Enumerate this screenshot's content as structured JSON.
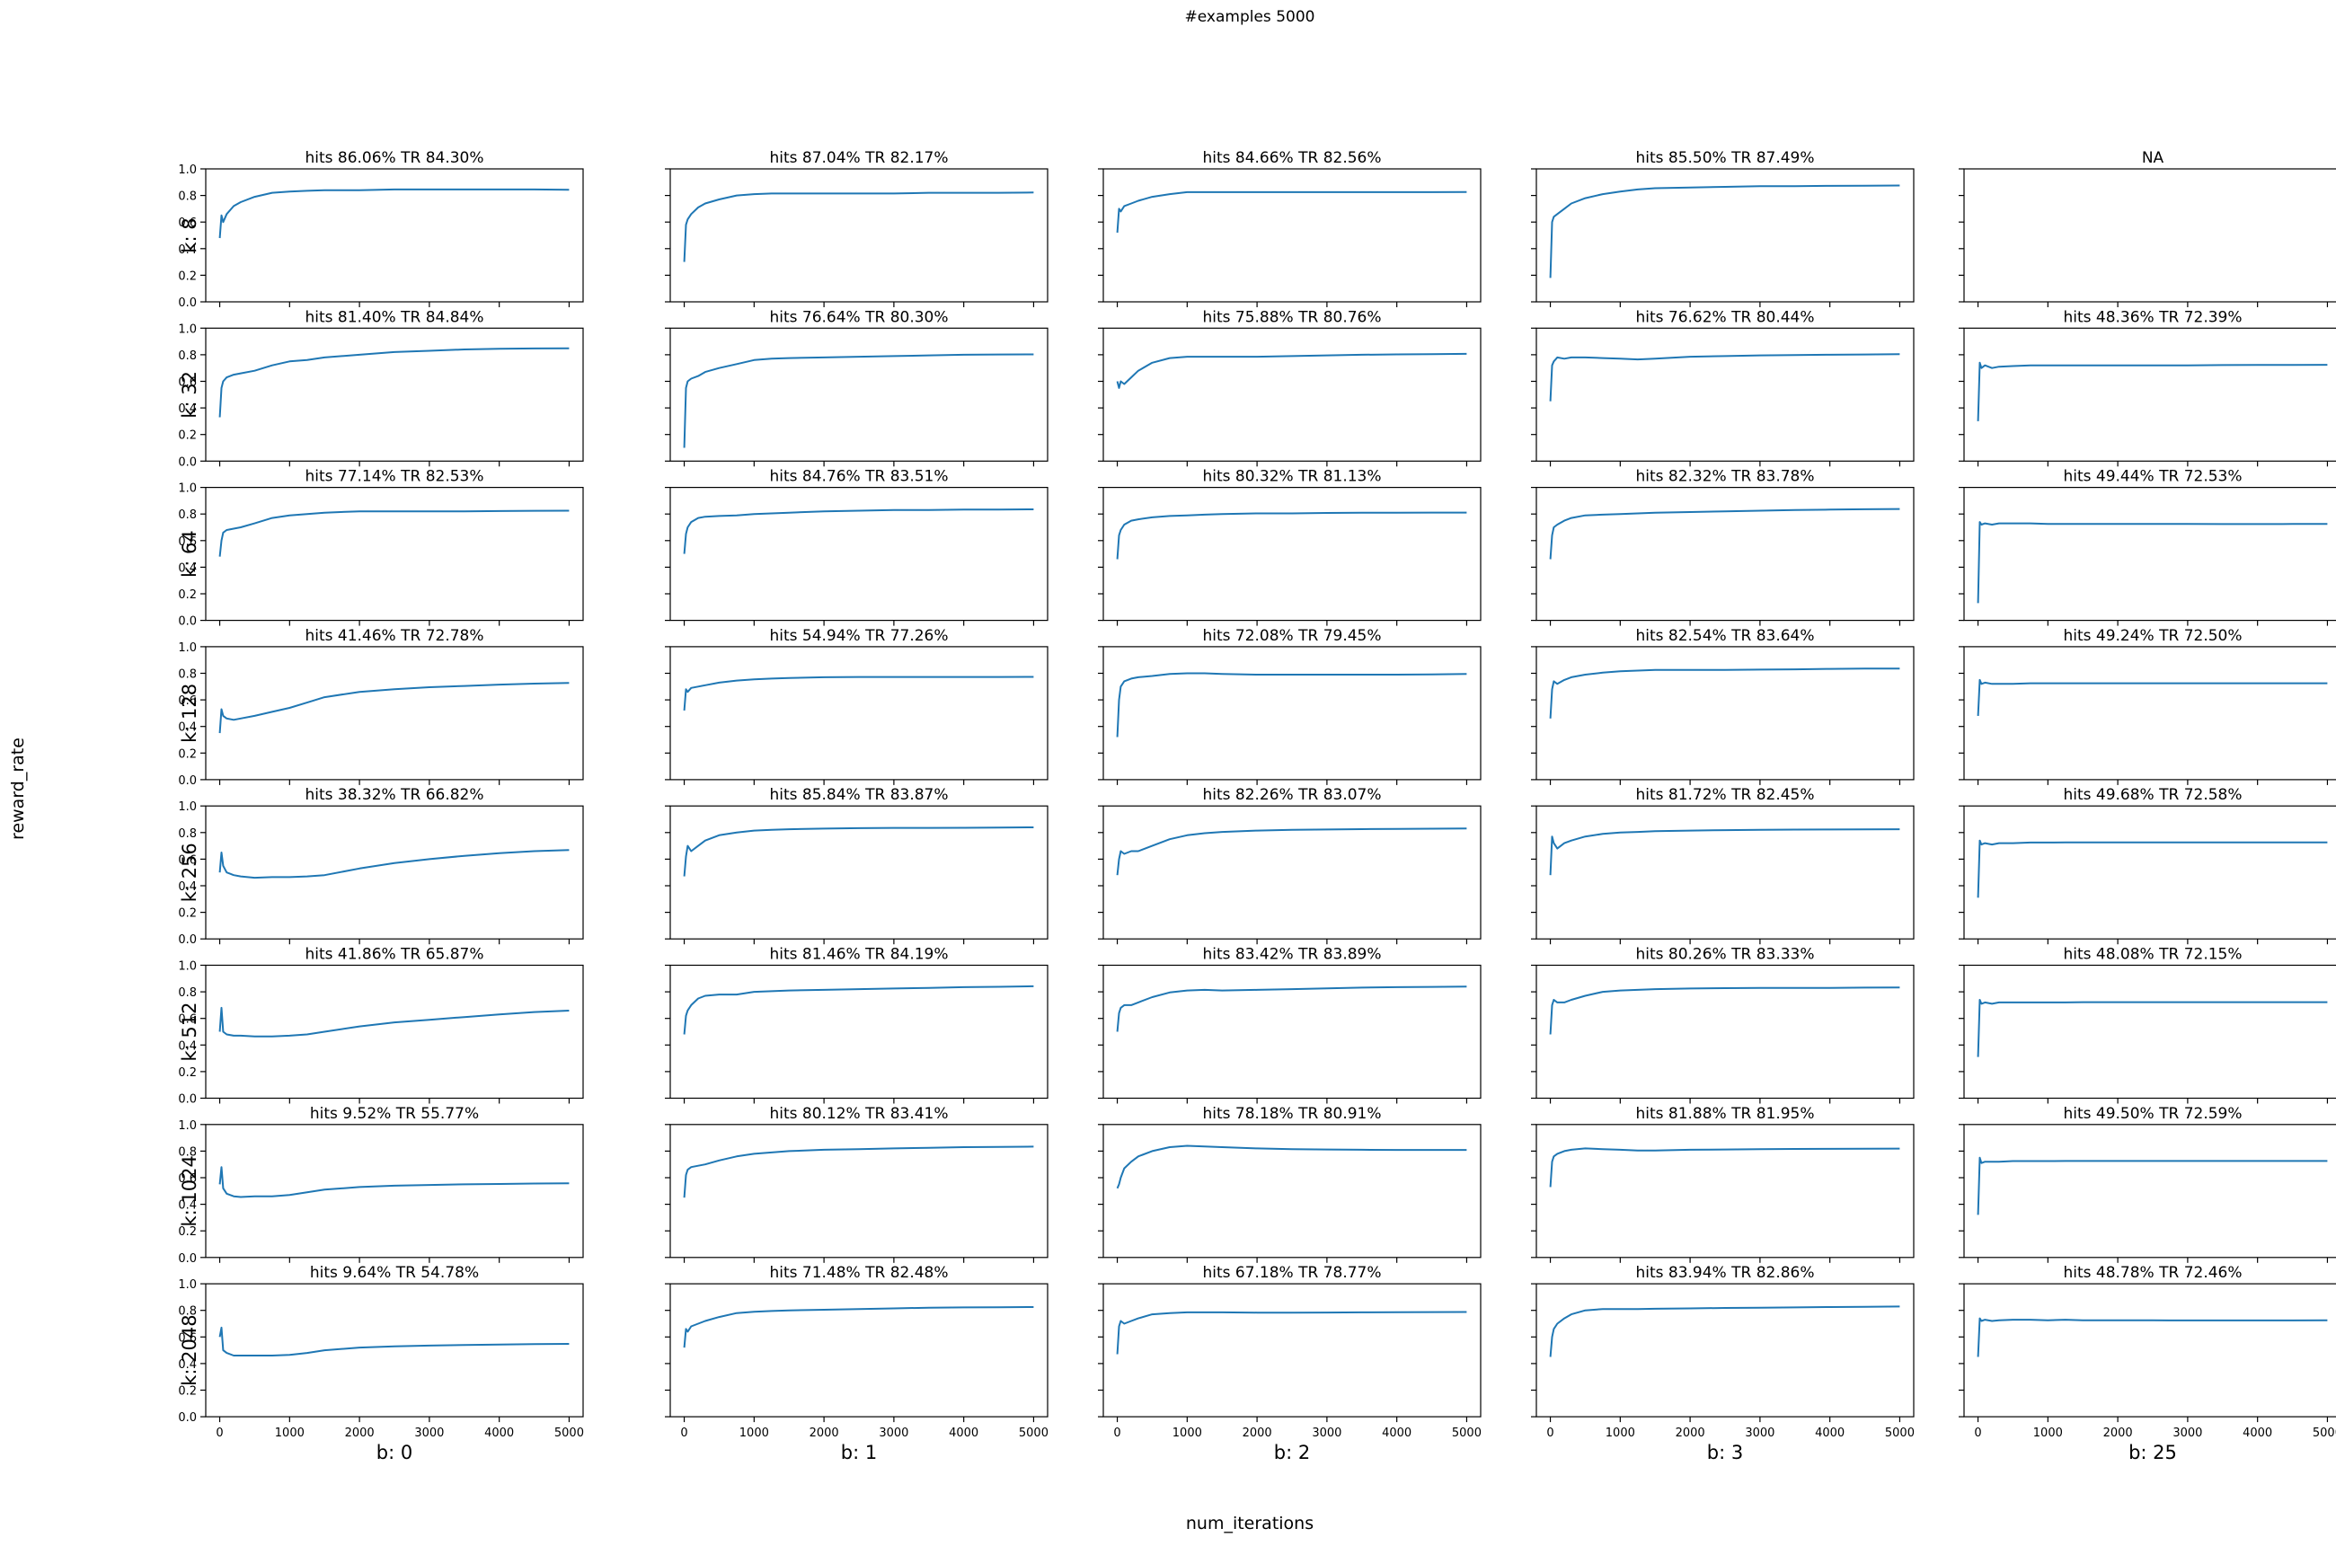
{
  "figure": {
    "suptitle": "#examples 5000",
    "xlabel": "num_iterations",
    "ylabel": "reward_rate"
  },
  "chart_data": {
    "type": "line",
    "grid": false,
    "color": "#1f77b4",
    "xlim": [
      -200,
      5200
    ],
    "ylim": [
      0,
      1
    ],
    "xticks": [
      0,
      1000,
      2000,
      3000,
      4000,
      5000
    ],
    "yticks": [
      "0.0",
      "0.2",
      "0.4",
      "0.6",
      "0.8",
      "1.0"
    ],
    "row_labels": [
      "k: 8",
      "k: 32",
      "k: 64",
      "k: 128",
      "k: 256",
      "k: 512",
      "k: 1024",
      "k: 2048"
    ],
    "col_labels": [
      "b: 0",
      "b: 1",
      "b: 2",
      "b: 3",
      "b: 25"
    ],
    "x": [
      0,
      25,
      50,
      100,
      200,
      300,
      500,
      750,
      1000,
      1250,
      1500,
      2000,
      2500,
      3000,
      3500,
      4000,
      4500,
      5000
    ],
    "panels": [
      [
        {
          "title": "hits 86.06% TR 84.30%",
          "y": [
            0.48,
            0.65,
            0.6,
            0.66,
            0.72,
            0.75,
            0.79,
            0.82,
            0.83,
            0.835,
            0.84,
            0.84,
            0.845,
            0.845,
            0.845,
            0.845,
            0.845,
            0.843
          ]
        },
        {
          "title": "hits 87.04% TR 82.17%",
          "y": [
            0.3,
            0.58,
            0.62,
            0.66,
            0.71,
            0.74,
            0.77,
            0.8,
            0.81,
            0.815,
            0.815,
            0.815,
            0.815,
            0.815,
            0.82,
            0.82,
            0.82,
            0.822
          ]
        },
        {
          "title": "hits 84.66% TR 82.56%",
          "y": [
            0.52,
            0.7,
            0.68,
            0.72,
            0.74,
            0.76,
            0.79,
            0.81,
            0.825,
            0.825,
            0.825,
            0.825,
            0.825,
            0.825,
            0.825,
            0.825,
            0.825,
            0.826
          ]
        },
        {
          "title": "hits 85.50% TR 87.49%",
          "y": [
            0.18,
            0.6,
            0.64,
            0.66,
            0.7,
            0.74,
            0.78,
            0.81,
            0.83,
            0.845,
            0.855,
            0.86,
            0.865,
            0.87,
            0.87,
            0.872,
            0.873,
            0.875
          ]
        },
        {
          "title": "NA",
          "y": []
        }
      ],
      [
        {
          "title": "hits 81.40% TR 84.84%",
          "y": [
            0.33,
            0.55,
            0.6,
            0.63,
            0.65,
            0.66,
            0.68,
            0.72,
            0.75,
            0.76,
            0.78,
            0.8,
            0.82,
            0.83,
            0.84,
            0.845,
            0.847,
            0.848
          ]
        },
        {
          "title": "hits 76.64% TR 80.30%",
          "y": [
            0.1,
            0.55,
            0.6,
            0.62,
            0.64,
            0.67,
            0.7,
            0.73,
            0.76,
            0.77,
            0.775,
            0.78,
            0.785,
            0.79,
            0.795,
            0.8,
            0.802,
            0.803
          ]
        },
        {
          "title": "hits 75.88% TR 80.76%",
          "y": [
            0.6,
            0.55,
            0.6,
            0.58,
            0.63,
            0.68,
            0.74,
            0.775,
            0.785,
            0.785,
            0.785,
            0.785,
            0.79,
            0.795,
            0.8,
            0.803,
            0.805,
            0.807
          ]
        },
        {
          "title": "hits 76.62% TR 80.44%",
          "y": [
            0.45,
            0.72,
            0.75,
            0.78,
            0.77,
            0.78,
            0.78,
            0.775,
            0.77,
            0.765,
            0.77,
            0.785,
            0.79,
            0.795,
            0.798,
            0.8,
            0.802,
            0.804
          ]
        },
        {
          "title": "hits 48.36% TR 72.39%",
          "y": [
            0.3,
            0.74,
            0.7,
            0.72,
            0.7,
            0.71,
            0.715,
            0.72,
            0.72,
            0.72,
            0.72,
            0.72,
            0.72,
            0.72,
            0.722,
            0.723,
            0.723,
            0.724
          ]
        }
      ],
      [
        {
          "title": "hits 77.14% TR 82.53%",
          "y": [
            0.48,
            0.6,
            0.66,
            0.68,
            0.69,
            0.7,
            0.73,
            0.77,
            0.79,
            0.8,
            0.81,
            0.82,
            0.82,
            0.82,
            0.82,
            0.822,
            0.824,
            0.825
          ]
        },
        {
          "title": "hits 84.76% TR 83.51%",
          "y": [
            0.5,
            0.65,
            0.7,
            0.74,
            0.77,
            0.78,
            0.785,
            0.79,
            0.8,
            0.805,
            0.81,
            0.82,
            0.825,
            0.83,
            0.83,
            0.833,
            0.834,
            0.835
          ]
        },
        {
          "title": "hits 80.32% TR 81.13%",
          "y": [
            0.46,
            0.64,
            0.68,
            0.72,
            0.75,
            0.76,
            0.775,
            0.785,
            0.79,
            0.795,
            0.8,
            0.805,
            0.805,
            0.808,
            0.81,
            0.81,
            0.811,
            0.811
          ]
        },
        {
          "title": "hits 82.32% TR 83.78%",
          "y": [
            0.46,
            0.64,
            0.7,
            0.72,
            0.75,
            0.77,
            0.79,
            0.795,
            0.8,
            0.805,
            0.81,
            0.815,
            0.82,
            0.825,
            0.83,
            0.833,
            0.836,
            0.838
          ]
        },
        {
          "title": "hits 49.44% TR 72.53%",
          "y": [
            0.13,
            0.74,
            0.72,
            0.73,
            0.72,
            0.73,
            0.73,
            0.73,
            0.725,
            0.725,
            0.725,
            0.725,
            0.725,
            0.725,
            0.724,
            0.724,
            0.725,
            0.725
          ]
        }
      ],
      [
        {
          "title": "hits 41.46% TR 72.78%",
          "y": [
            0.35,
            0.53,
            0.48,
            0.46,
            0.45,
            0.46,
            0.48,
            0.51,
            0.54,
            0.58,
            0.62,
            0.66,
            0.68,
            0.695,
            0.705,
            0.715,
            0.722,
            0.728
          ]
        },
        {
          "title": "hits 54.94% TR 77.26%",
          "y": [
            0.52,
            0.68,
            0.66,
            0.69,
            0.7,
            0.71,
            0.73,
            0.745,
            0.755,
            0.76,
            0.765,
            0.77,
            0.772,
            0.772,
            0.772,
            0.772,
            0.772,
            0.773
          ]
        },
        {
          "title": "hits 72.08% TR 79.45%",
          "y": [
            0.32,
            0.6,
            0.7,
            0.74,
            0.76,
            0.77,
            0.78,
            0.795,
            0.8,
            0.8,
            0.795,
            0.79,
            0.79,
            0.79,
            0.79,
            0.79,
            0.792,
            0.795
          ]
        },
        {
          "title": "hits 82.54% TR 83.64%",
          "y": [
            0.46,
            0.68,
            0.74,
            0.72,
            0.75,
            0.77,
            0.79,
            0.805,
            0.815,
            0.82,
            0.825,
            0.825,
            0.825,
            0.828,
            0.83,
            0.833,
            0.835,
            0.836
          ]
        },
        {
          "title": "hits 49.24% TR 72.50%",
          "y": [
            0.48,
            0.75,
            0.72,
            0.73,
            0.72,
            0.72,
            0.72,
            0.725,
            0.725,
            0.725,
            0.725,
            0.725,
            0.725,
            0.725,
            0.725,
            0.725,
            0.725,
            0.725
          ]
        }
      ],
      [
        {
          "title": "hits 38.32% TR 66.82%",
          "y": [
            0.5,
            0.65,
            0.55,
            0.5,
            0.48,
            0.47,
            0.46,
            0.465,
            0.465,
            0.47,
            0.48,
            0.53,
            0.57,
            0.6,
            0.625,
            0.645,
            0.66,
            0.668
          ]
        },
        {
          "title": "hits 85.84% TR 83.87%",
          "y": [
            0.47,
            0.62,
            0.7,
            0.66,
            0.7,
            0.74,
            0.78,
            0.8,
            0.815,
            0.82,
            0.825,
            0.83,
            0.833,
            0.835,
            0.835,
            0.836,
            0.837,
            0.839
          ]
        },
        {
          "title": "hits 82.26% TR 83.07%",
          "y": [
            0.48,
            0.6,
            0.66,
            0.64,
            0.66,
            0.66,
            0.7,
            0.75,
            0.78,
            0.795,
            0.805,
            0.815,
            0.82,
            0.823,
            0.826,
            0.828,
            0.829,
            0.831
          ]
        },
        {
          "title": "hits 81.72% TR 82.45%",
          "y": [
            0.48,
            0.77,
            0.72,
            0.68,
            0.72,
            0.74,
            0.77,
            0.79,
            0.8,
            0.805,
            0.81,
            0.815,
            0.818,
            0.82,
            0.822,
            0.823,
            0.824,
            0.825
          ]
        },
        {
          "title": "hits 49.68% TR 72.58%",
          "y": [
            0.31,
            0.74,
            0.71,
            0.72,
            0.71,
            0.72,
            0.72,
            0.725,
            0.725,
            0.726,
            0.726,
            0.726,
            0.726,
            0.726,
            0.726,
            0.726,
            0.726,
            0.726
          ]
        }
      ],
      [
        {
          "title": "hits 41.86% TR 65.87%",
          "y": [
            0.5,
            0.68,
            0.5,
            0.48,
            0.47,
            0.47,
            0.465,
            0.465,
            0.47,
            0.48,
            0.5,
            0.54,
            0.57,
            0.59,
            0.61,
            0.63,
            0.648,
            0.659
          ]
        },
        {
          "title": "hits 81.46% TR 84.19%",
          "y": [
            0.48,
            0.62,
            0.66,
            0.7,
            0.75,
            0.77,
            0.78,
            0.78,
            0.8,
            0.805,
            0.81,
            0.815,
            0.82,
            0.825,
            0.83,
            0.835,
            0.838,
            0.842
          ]
        },
        {
          "title": "hits 83.42% TR 83.89%",
          "y": [
            0.5,
            0.64,
            0.68,
            0.7,
            0.7,
            0.72,
            0.76,
            0.795,
            0.81,
            0.815,
            0.81,
            0.815,
            0.82,
            0.826,
            0.832,
            0.835,
            0.837,
            0.839
          ]
        },
        {
          "title": "hits 80.26% TR 83.33%",
          "y": [
            0.48,
            0.7,
            0.74,
            0.72,
            0.72,
            0.74,
            0.77,
            0.8,
            0.81,
            0.815,
            0.82,
            0.825,
            0.828,
            0.83,
            0.83,
            0.83,
            0.832,
            0.833
          ]
        },
        {
          "title": "hits 48.08% TR 72.15%",
          "y": [
            0.31,
            0.74,
            0.71,
            0.72,
            0.71,
            0.72,
            0.72,
            0.72,
            0.72,
            0.72,
            0.722,
            0.722,
            0.722,
            0.722,
            0.722,
            0.722,
            0.722,
            0.722
          ]
        }
      ],
      [
        {
          "title": "hits 9.52% TR 55.77%",
          "y": [
            0.55,
            0.68,
            0.52,
            0.48,
            0.46,
            0.455,
            0.46,
            0.46,
            0.47,
            0.49,
            0.51,
            0.53,
            0.54,
            0.545,
            0.55,
            0.553,
            0.556,
            0.558
          ]
        },
        {
          "title": "hits 80.12% TR 83.41%",
          "y": [
            0.45,
            0.62,
            0.66,
            0.68,
            0.69,
            0.7,
            0.73,
            0.76,
            0.78,
            0.79,
            0.8,
            0.81,
            0.815,
            0.82,
            0.825,
            0.83,
            0.832,
            0.834
          ]
        },
        {
          "title": "hits 78.18% TR 80.91%",
          "y": [
            0.52,
            0.55,
            0.6,
            0.67,
            0.72,
            0.76,
            0.8,
            0.83,
            0.84,
            0.835,
            0.83,
            0.82,
            0.815,
            0.812,
            0.81,
            0.809,
            0.809,
            0.809
          ]
        },
        {
          "title": "hits 81.88% TR 81.95%",
          "y": [
            0.53,
            0.72,
            0.76,
            0.78,
            0.8,
            0.81,
            0.82,
            0.815,
            0.81,
            0.805,
            0.805,
            0.81,
            0.812,
            0.815,
            0.816,
            0.817,
            0.818,
            0.819
          ]
        },
        {
          "title": "hits 49.50% TR 72.59%",
          "y": [
            0.32,
            0.75,
            0.71,
            0.72,
            0.72,
            0.72,
            0.725,
            0.725,
            0.725,
            0.726,
            0.726,
            0.726,
            0.726,
            0.726,
            0.726,
            0.726,
            0.726,
            0.726
          ]
        }
      ],
      [
        {
          "title": "hits 9.64% TR 54.78%",
          "y": [
            0.6,
            0.67,
            0.5,
            0.48,
            0.46,
            0.46,
            0.46,
            0.46,
            0.465,
            0.48,
            0.5,
            0.52,
            0.53,
            0.535,
            0.54,
            0.543,
            0.546,
            0.548
          ]
        },
        {
          "title": "hits 71.48% TR 82.48%",
          "y": [
            0.52,
            0.66,
            0.64,
            0.68,
            0.7,
            0.72,
            0.75,
            0.78,
            0.79,
            0.795,
            0.8,
            0.805,
            0.81,
            0.815,
            0.82,
            0.822,
            0.823,
            0.825
          ]
        },
        {
          "title": "hits 67.18% TR 78.77%",
          "y": [
            0.47,
            0.68,
            0.72,
            0.7,
            0.72,
            0.74,
            0.77,
            0.78,
            0.785,
            0.785,
            0.785,
            0.783,
            0.783,
            0.784,
            0.785,
            0.786,
            0.787,
            0.788
          ]
        },
        {
          "title": "hits 83.94% TR 82.86%",
          "y": [
            0.45,
            0.6,
            0.66,
            0.7,
            0.74,
            0.77,
            0.8,
            0.81,
            0.81,
            0.81,
            0.812,
            0.815,
            0.818,
            0.82,
            0.822,
            0.825,
            0.827,
            0.829
          ]
        },
        {
          "title": "hits 48.78% TR 72.46%",
          "y": [
            0.45,
            0.74,
            0.72,
            0.73,
            0.72,
            0.725,
            0.73,
            0.73,
            0.725,
            0.73,
            0.725,
            0.725,
            0.725,
            0.724,
            0.724,
            0.724,
            0.724,
            0.725
          ]
        }
      ]
    ]
  }
}
